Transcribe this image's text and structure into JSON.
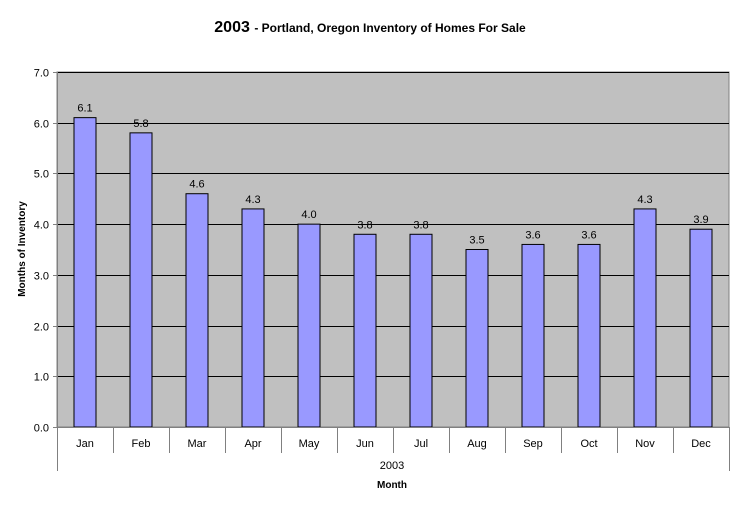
{
  "chart_data": {
    "type": "bar",
    "title": "2003",
    "subtitle": "- Portland, Oregon Inventory of Homes For Sale",
    "xlabel": "Month",
    "ylabel": "Months of Inventory",
    "group_label": "2003",
    "categories": [
      "Jan",
      "Feb",
      "Mar",
      "Apr",
      "May",
      "Jun",
      "Jul",
      "Aug",
      "Sep",
      "Oct",
      "Nov",
      "Dec"
    ],
    "values": [
      6.1,
      5.8,
      4.6,
      4.3,
      4.0,
      3.8,
      3.8,
      3.5,
      3.6,
      3.6,
      4.3,
      3.9
    ],
    "data_labels": [
      "6.1",
      "5.8",
      "4.6",
      "4.3",
      "4.0",
      "3.8",
      "3.8",
      "3.5",
      "3.6",
      "3.6",
      "4.3",
      "3.9"
    ],
    "ylim": [
      0,
      7
    ],
    "yticks": [
      0,
      1,
      2,
      3,
      4,
      5,
      6,
      7
    ],
    "ytick_labels": [
      "0.0",
      "1.0",
      "2.0",
      "3.0",
      "4.0",
      "5.0",
      "6.0",
      "7.0"
    ],
    "grid": true,
    "legend": "none",
    "colors": {
      "bar_fill": "#9999ff",
      "bar_stroke": "#000000",
      "plot_background": "#c0c0c0",
      "gridline": "#000000",
      "axis": "#808080"
    }
  }
}
